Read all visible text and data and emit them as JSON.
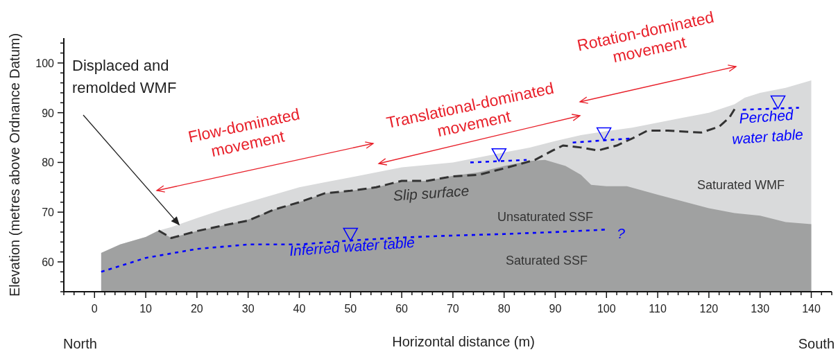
{
  "chart_data": {
    "type": "area",
    "xlabel": "Horizontal distance (m)",
    "ylabel": "Elevation (metres above Ordnance Datum)",
    "xlim": [
      -6,
      144
    ],
    "ylim": [
      54,
      105
    ],
    "xticks": [
      {
        "value": -6,
        "label": null
      },
      {
        "value": -4,
        "label": null
      },
      {
        "value": -2,
        "label": null
      },
      0,
      {
        "value": 2,
        "label": null
      },
      {
        "value": 4,
        "label": null
      },
      {
        "value": 6,
        "label": null
      },
      {
        "value": 8,
        "label": null
      },
      10,
      {
        "value": 12,
        "label": null
      },
      {
        "value": 14,
        "label": null
      },
      {
        "value": 16,
        "label": null
      },
      {
        "value": 18,
        "label": null
      },
      20,
      {
        "value": 22,
        "label": null
      },
      {
        "value": 24,
        "label": null
      },
      {
        "value": 26,
        "label": null
      },
      {
        "value": 28,
        "label": null
      },
      30,
      {
        "value": 32,
        "label": null
      },
      {
        "value": 34,
        "label": null
      },
      {
        "value": 36,
        "label": null
      },
      {
        "value": 38,
        "label": null
      },
      40,
      {
        "value": 42,
        "label": null
      },
      {
        "value": 44,
        "label": null
      },
      {
        "value": 46,
        "label": null
      },
      {
        "value": 48,
        "label": null
      },
      50,
      {
        "value": 52,
        "label": null
      },
      {
        "value": 54,
        "label": null
      },
      {
        "value": 56,
        "label": null
      },
      {
        "value": 58,
        "label": null
      },
      60,
      {
        "value": 62,
        "label": null
      },
      {
        "value": 64,
        "label": null
      },
      {
        "value": 66,
        "label": null
      },
      {
        "value": 68,
        "label": null
      },
      70,
      {
        "value": 72,
        "label": null
      },
      {
        "value": 74,
        "label": null
      },
      {
        "value": 76,
        "label": null
      },
      {
        "value": 78,
        "label": null
      },
      80,
      {
        "value": 82,
        "label": null
      },
      {
        "value": 84,
        "label": null
      },
      {
        "value": 86,
        "label": null
      },
      {
        "value": 88,
        "label": null
      },
      90,
      {
        "value": 92,
        "label": null
      },
      {
        "value": 94,
        "label": null
      },
      {
        "value": 96,
        "label": null
      },
      {
        "value": 98,
        "label": null
      },
      100,
      {
        "value": 102,
        "label": null
      },
      {
        "value": 104,
        "label": null
      },
      {
        "value": 106,
        "label": null
      },
      {
        "value": 108,
        "label": null
      },
      110,
      {
        "value": 112,
        "label": null
      },
      {
        "value": 114,
        "label": null
      },
      {
        "value": 116,
        "label": null
      },
      {
        "value": 118,
        "label": null
      },
      120,
      {
        "value": 122,
        "label": null
      },
      {
        "value": 124,
        "label": null
      },
      {
        "value": 126,
        "label": null
      },
      {
        "value": 128,
        "label": null
      },
      130,
      {
        "value": 132,
        "label": null
      },
      {
        "value": 134,
        "label": null
      },
      {
        "value": 136,
        "label": null
      },
      {
        "value": 138,
        "label": null
      },
      140,
      {
        "value": 142,
        "label": null
      },
      {
        "value": 144,
        "label": null
      }
    ],
    "yticks": [
      {
        "value": 54,
        "label": null
      },
      {
        "value": 56,
        "label": null
      },
      {
        "value": 58,
        "label": null
      },
      60,
      {
        "value": 62,
        "label": null
      },
      {
        "value": 64,
        "label": null
      },
      {
        "value": 66,
        "label": null
      },
      {
        "value": 68,
        "label": null
      },
      70,
      {
        "value": 72,
        "label": null
      },
      {
        "value": 74,
        "label": null
      },
      {
        "value": 76,
        "label": null
      },
      {
        "value": 78,
        "label": null
      },
      80,
      {
        "value": 82,
        "label": null
      },
      {
        "value": 84,
        "label": null
      },
      {
        "value": 86,
        "label": null
      },
      {
        "value": 88,
        "label": null
      },
      90,
      {
        "value": 92,
        "label": null
      },
      {
        "value": 94,
        "label": null
      },
      {
        "value": 96,
        "label": null
      },
      {
        "value": 98,
        "label": null
      },
      100,
      {
        "value": 102,
        "label": null
      },
      {
        "value": 104,
        "label": null
      }
    ],
    "series": [
      {
        "color": "#d9dadb",
        "x": [
          1.3,
          5,
          10,
          12.5,
          15,
          20,
          25,
          30,
          35,
          40,
          45,
          50,
          55,
          60,
          65,
          70,
          75,
          80,
          85,
          90,
          95,
          100,
          105,
          110,
          115,
          120,
          125,
          127,
          130,
          135,
          140
        ],
        "values": [
          61.8,
          63.5,
          65,
          66.3,
          67,
          68.8,
          70.5,
          72,
          73.5,
          75,
          76,
          77,
          78,
          79,
          79.5,
          80,
          81,
          82,
          83,
          84.3,
          85.5,
          86.3,
          87,
          88,
          89,
          90,
          91.7,
          93,
          94,
          95,
          96.5
        ]
      },
      {
        "color": "#a0a1a1",
        "x": [
          1.3,
          5,
          10,
          12.5,
          15,
          20,
          25,
          30,
          35,
          40,
          45,
          50,
          55,
          60,
          65,
          70,
          75,
          80,
          85,
          88,
          92,
          95,
          97,
          100,
          104,
          110,
          120,
          125,
          130,
          135,
          140
        ],
        "values": [
          61.8,
          63.5,
          65,
          66.3,
          64.8,
          66.2,
          67.3,
          68.5,
          70.5,
          72,
          73.8,
          74.3,
          75,
          76.2,
          76.3,
          77.3,
          78,
          79.3,
          80.3,
          80.5,
          79.3,
          77.5,
          75.5,
          75.2,
          75.2,
          73.5,
          70.8,
          69.8,
          69.3,
          68,
          67.6
        ]
      },
      {
        "type": "line",
        "color": "#333333",
        "line_style": "dashed",
        "marker": "none",
        "x": [
          12.5,
          15,
          20,
          25,
          30,
          35,
          40,
          45,
          50,
          55,
          60,
          65,
          70,
          75,
          80,
          86,
          89.5,
          91.5,
          95,
          98.3,
          102,
          105,
          108,
          112,
          118.5,
          122,
          124,
          125.3
        ],
        "values": [
          66.3,
          64.8,
          66.2,
          67.3,
          68.3,
          70.5,
          72,
          73.8,
          74.3,
          75,
          76.3,
          76.3,
          77.2,
          77.5,
          78.8,
          80.5,
          82.4,
          83.4,
          83,
          82.4,
          83.4,
          84.8,
          86.4,
          86.4,
          86,
          87.2,
          89,
          91.2
        ]
      },
      {
        "type": "line",
        "color": "#0000ff",
        "line_style": "dotted",
        "marker": "none",
        "x": [
          1.3,
          10,
          20,
          30,
          40,
          50,
          60,
          70,
          80,
          90,
          100
        ],
        "values": [
          58,
          60.8,
          62.6,
          63.5,
          63.5,
          64.3,
          64.9,
          65.3,
          65.6,
          66,
          66.5
        ]
      },
      {
        "type": "line",
        "color": "#0000ff",
        "line_style": "dotted",
        "marker": "none",
        "x": [
          73.4,
          84.4,
          89,
          93.4,
          104.6,
          115,
          126.6,
          137.6
        ],
        "values": [
          80,
          80.5,
          null,
          84,
          84.8,
          null,
          90.6,
          91
        ]
      },
      {
        "type": "scatter",
        "color": "#0000ff",
        "marker": "triangle",
        "x": [
          50,
          79,
          99.5,
          133.5
        ],
        "values": [
          65.5,
          81.5,
          85.7,
          92.1
        ]
      }
    ],
    "annotations": [
      {
        "text": "Displaced and\nremolded WMF",
        "x": 16.5,
        "y": 67.5
      },
      "Flow-dominated\nmovement",
      "Translational-dominated\nmovement",
      "Rotation-dominated\nmovement",
      "Slip surface",
      "Unsaturated SSF",
      "Saturated SSF",
      "Saturated WMF",
      "Inferred water table",
      "?",
      "Perched\nwater table",
      "North",
      "South"
    ],
    "grid": false,
    "legend": false
  }
}
